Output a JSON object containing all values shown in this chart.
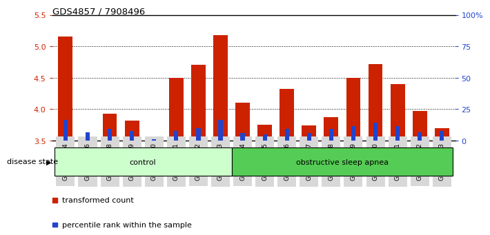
{
  "title": "GDS4857 / 7908496",
  "samples": [
    "GSM949164",
    "GSM949166",
    "GSM949168",
    "GSM949169",
    "GSM949170",
    "GSM949171",
    "GSM949172",
    "GSM949173",
    "GSM949174",
    "GSM949175",
    "GSM949176",
    "GSM949177",
    "GSM949178",
    "GSM949179",
    "GSM949180",
    "GSM949181",
    "GSM949182",
    "GSM949183"
  ],
  "red_values": [
    5.15,
    3.52,
    3.93,
    3.82,
    3.52,
    4.5,
    4.7,
    5.18,
    4.1,
    3.75,
    4.32,
    3.74,
    3.87,
    4.5,
    4.72,
    4.4,
    3.97,
    3.7
  ],
  "blue_values": [
    3.83,
    3.63,
    3.68,
    3.65,
    3.52,
    3.65,
    3.7,
    3.83,
    3.62,
    3.6,
    3.68,
    3.62,
    3.68,
    3.73,
    3.78,
    3.73,
    3.63,
    3.65
  ],
  "baseline": 3.5,
  "ylim_left": [
    3.5,
    5.5
  ],
  "ylim_right": [
    0,
    100
  ],
  "yticks_left": [
    3.5,
    4.0,
    4.5,
    5.0,
    5.5
  ],
  "yticks_right": [
    0,
    25,
    50,
    75,
    100
  ],
  "ytick_labels_right": [
    "0",
    "25",
    "50",
    "75",
    "100%"
  ],
  "control_count": 8,
  "total_count": 18,
  "groups": [
    {
      "label": "control",
      "start": 0,
      "end": 8,
      "color": "#ccffcc"
    },
    {
      "label": "obstructive sleep apnea",
      "start": 8,
      "end": 18,
      "color": "#55cc55"
    }
  ],
  "bar_color": "#cc2200",
  "blue_color": "#2244cc",
  "tick_color_left": "#cc2200",
  "tick_color_right": "#2244cc",
  "legend_items": [
    {
      "label": "transformed count",
      "color": "#cc2200"
    },
    {
      "label": "percentile rank within the sample",
      "color": "#2244cc"
    }
  ],
  "disease_state_label": "disease state",
  "bar_width": 0.65
}
